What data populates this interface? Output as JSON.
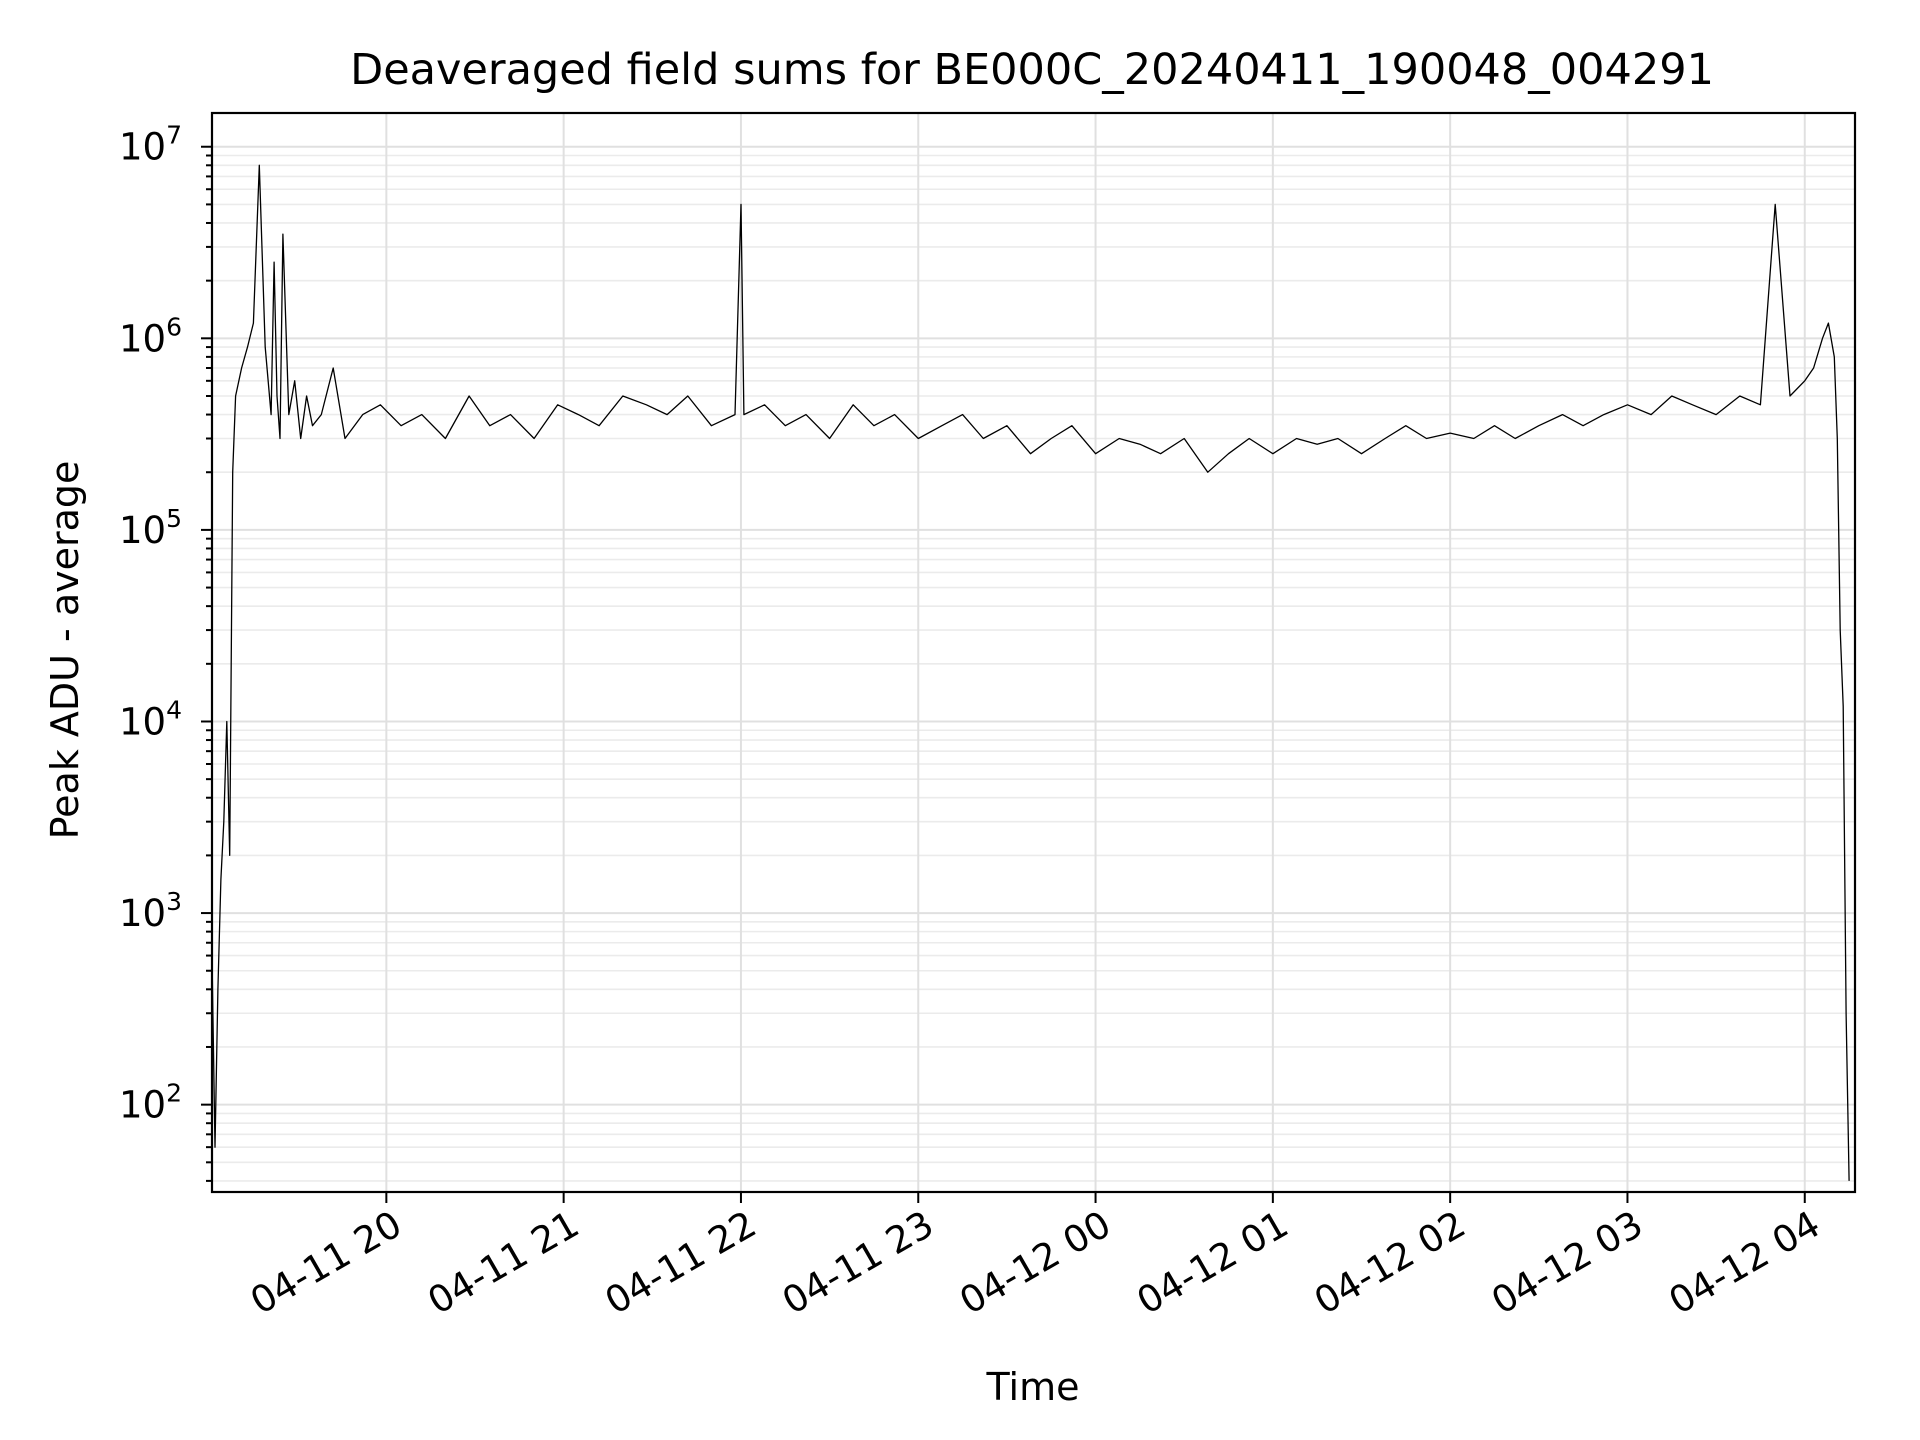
{
  "chart_data": {
    "type": "line",
    "title": "Deaveraged field sums for BE000C_20240411_190048_004291",
    "xlabel": "Time",
    "ylabel": "Peak ADU - average",
    "xlim": [
      "2024-04-11 19:01",
      "2024-04-12 04:17"
    ],
    "ylim": [
      35,
      15000000
    ],
    "yscale": "log",
    "grid": true,
    "x_ticks": [
      "04-11 20",
      "04-11 21",
      "04-11 22",
      "04-11 23",
      "04-12 00",
      "04-12 01",
      "04-12 02",
      "04-12 03",
      "04-12 04"
    ],
    "x_tick_times": [
      "2024-04-11 20:00",
      "2024-04-11 21:00",
      "2024-04-11 22:00",
      "2024-04-11 23:00",
      "2024-04-12 00:00",
      "2024-04-12 01:00",
      "2024-04-12 02:00",
      "2024-04-12 03:00",
      "2024-04-12 04:00"
    ],
    "y_ticks": [
      {
        "base": "10",
        "exp": "2",
        "value": 100
      },
      {
        "base": "10",
        "exp": "3",
        "value": 1000
      },
      {
        "base": "10",
        "exp": "4",
        "value": 10000
      },
      {
        "base": "10",
        "exp": "5",
        "value": 100000
      },
      {
        "base": "10",
        "exp": "6",
        "value": 1000000
      },
      {
        "base": "10",
        "exp": "7",
        "value": 10000000
      }
    ],
    "series": [
      {
        "color": "#000000",
        "x": [
          "2024-04-11 19:01",
          "2024-04-11 19:02",
          "2024-04-11 19:03",
          "2024-04-11 19:04",
          "2024-04-11 19:05",
          "2024-04-11 19:06",
          "2024-04-11 19:07",
          "2024-04-11 19:08",
          "2024-04-11 19:09",
          "2024-04-11 19:11",
          "2024-04-11 19:13",
          "2024-04-11 19:15",
          "2024-04-11 19:17",
          "2024-04-11 19:19",
          "2024-04-11 19:21",
          "2024-04-11 19:22",
          "2024-04-11 19:23",
          "2024-04-11 19:24",
          "2024-04-11 19:25",
          "2024-04-11 19:27",
          "2024-04-11 19:29",
          "2024-04-11 19:31",
          "2024-04-11 19:33",
          "2024-04-11 19:35",
          "2024-04-11 19:38",
          "2024-04-11 19:42",
          "2024-04-11 19:46",
          "2024-04-11 19:52",
          "2024-04-11 19:58",
          "2024-04-11 20:05",
          "2024-04-11 20:12",
          "2024-04-11 20:20",
          "2024-04-11 20:28",
          "2024-04-11 20:35",
          "2024-04-11 20:42",
          "2024-04-11 20:50",
          "2024-04-11 20:58",
          "2024-04-11 21:05",
          "2024-04-11 21:12",
          "2024-04-11 21:20",
          "2024-04-11 21:28",
          "2024-04-11 21:35",
          "2024-04-11 21:42",
          "2024-04-11 21:50",
          "2024-04-11 21:58",
          "2024-04-11 22:00",
          "2024-04-11 22:01",
          "2024-04-11 22:08",
          "2024-04-11 22:15",
          "2024-04-11 22:22",
          "2024-04-11 22:30",
          "2024-04-11 22:38",
          "2024-04-11 22:45",
          "2024-04-11 22:52",
          "2024-04-11 23:00",
          "2024-04-11 23:08",
          "2024-04-11 23:15",
          "2024-04-11 23:22",
          "2024-04-11 23:30",
          "2024-04-11 23:38",
          "2024-04-11 23:45",
          "2024-04-11 23:52",
          "2024-04-12 00:00",
          "2024-04-12 00:08",
          "2024-04-12 00:15",
          "2024-04-12 00:22",
          "2024-04-12 00:30",
          "2024-04-12 00:38",
          "2024-04-12 00:45",
          "2024-04-12 00:52",
          "2024-04-12 01:00",
          "2024-04-12 01:08",
          "2024-04-12 01:15",
          "2024-04-12 01:22",
          "2024-04-12 01:30",
          "2024-04-12 01:38",
          "2024-04-12 01:45",
          "2024-04-12 01:52",
          "2024-04-12 02:00",
          "2024-04-12 02:08",
          "2024-04-12 02:15",
          "2024-04-12 02:22",
          "2024-04-12 02:30",
          "2024-04-12 02:38",
          "2024-04-12 02:45",
          "2024-04-12 02:52",
          "2024-04-12 03:00",
          "2024-04-12 03:08",
          "2024-04-12 03:15",
          "2024-04-12 03:22",
          "2024-04-12 03:30",
          "2024-04-12 03:38",
          "2024-04-12 03:45",
          "2024-04-12 03:50",
          "2024-04-12 03:55",
          "2024-04-12 04:00",
          "2024-04-12 04:03",
          "2024-04-12 04:06",
          "2024-04-12 04:08",
          "2024-04-12 04:10",
          "2024-04-12 04:11",
          "2024-04-12 04:12",
          "2024-04-12 04:13",
          "2024-04-12 04:14",
          "2024-04-12 04:15"
        ],
        "y": [
          600,
          60,
          400,
          1500,
          3000,
          10000,
          2000,
          200000,
          500000,
          700000,
          900000,
          1200000,
          8000000,
          900000,
          400000,
          2500000,
          500000,
          300000,
          3500000,
          400000,
          600000,
          300000,
          500000,
          350000,
          400000,
          700000,
          300000,
          400000,
          450000,
          350000,
          400000,
          300000,
          500000,
          350000,
          400000,
          300000,
          450000,
          400000,
          350000,
          500000,
          450000,
          400000,
          500000,
          350000,
          400000,
          5000000,
          400000,
          450000,
          350000,
          400000,
          300000,
          450000,
          350000,
          400000,
          300000,
          350000,
          400000,
          300000,
          350000,
          250000,
          300000,
          350000,
          250000,
          300000,
          280000,
          250000,
          300000,
          200000,
          250000,
          300000,
          250000,
          300000,
          280000,
          300000,
          250000,
          300000,
          350000,
          300000,
          320000,
          300000,
          350000,
          300000,
          350000,
          400000,
          350000,
          400000,
          450000,
          400000,
          500000,
          450000,
          400000,
          500000,
          450000,
          5000000,
          500000,
          600000,
          700000,
          1000000,
          1200000,
          800000,
          300000,
          30000,
          12000,
          300,
          40
        ]
      }
    ]
  }
}
